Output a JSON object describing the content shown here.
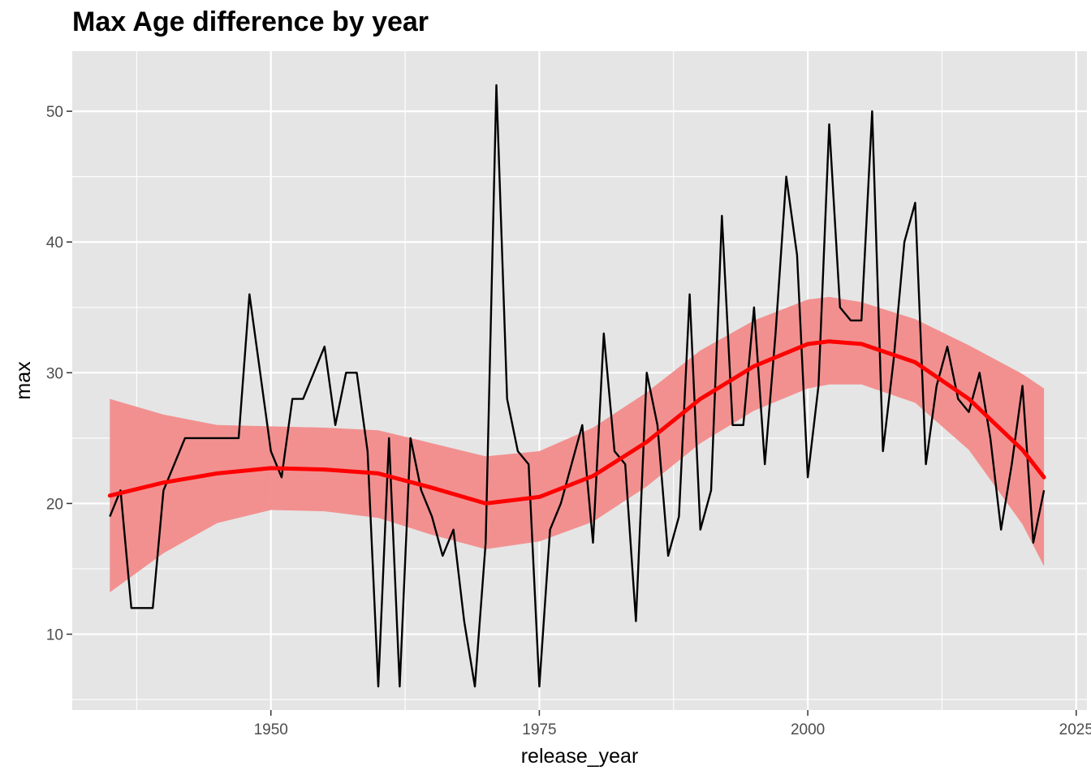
{
  "chart_data": {
    "type": "line",
    "title": "Max Age difference by year",
    "xlabel": "release_year",
    "ylabel": "max",
    "xlim": [
      1931.5,
      2026
    ],
    "ylim": [
      4.2,
      54.6
    ],
    "x_ticks": [
      1950,
      1975,
      2000,
      2025
    ],
    "y_ticks": [
      10,
      20,
      30,
      40,
      50
    ],
    "grid": true,
    "legend": "none",
    "colors": {
      "panel_background": "#e5e5e5",
      "grid": "#ffffff",
      "line": "#000000",
      "smooth_line": "#ff0000",
      "ribbon": "#f28b8b"
    },
    "series": [
      {
        "type": "line",
        "x": [
          1935,
          1936,
          1937,
          1938,
          1939,
          1940,
          1941,
          1942,
          1943,
          1944,
          1945,
          1946,
          1947,
          1948,
          1949,
          1950,
          1951,
          1952,
          1953,
          1954,
          1955,
          1956,
          1957,
          1958,
          1959,
          1960,
          1961,
          1962,
          1963,
          1964,
          1965,
          1966,
          1967,
          1968,
          1969,
          1970,
          1971,
          1972,
          1973,
          1974,
          1975,
          1976,
          1977,
          1978,
          1979,
          1980,
          1981,
          1982,
          1983,
          1984,
          1985,
          1986,
          1987,
          1988,
          1989,
          1990,
          1991,
          1992,
          1993,
          1994,
          1995,
          1996,
          1997,
          1998,
          1999,
          2000,
          2001,
          2002,
          2003,
          2004,
          2005,
          2006,
          2007,
          2008,
          2009,
          2010,
          2011,
          2012,
          2013,
          2014,
          2015,
          2016,
          2017,
          2018,
          2019,
          2020,
          2021,
          2022
        ],
        "values": [
          19,
          21,
          12,
          12,
          12,
          21,
          23,
          25,
          25,
          25,
          25,
          25,
          25,
          36,
          30,
          24,
          22,
          28,
          28,
          30,
          32,
          26,
          30,
          30,
          24,
          6,
          25,
          6,
          25,
          21,
          19,
          16,
          18,
          11,
          6,
          17,
          52,
          28,
          24,
          23,
          6,
          18,
          20,
          23,
          26,
          17,
          33,
          24,
          23,
          11,
          30,
          26,
          16,
          19,
          36,
          18,
          21,
          42,
          26,
          26,
          35,
          23,
          33,
          45,
          39,
          22,
          29,
          49,
          35,
          34,
          34,
          50,
          24,
          31,
          40,
          43,
          23,
          29,
          32,
          28,
          27,
          30,
          25,
          18,
          23,
          29,
          17,
          21
        ]
      },
      {
        "type": "smooth",
        "x": [
          1935,
          1940,
          1945,
          1950,
          1955,
          1960,
          1965,
          1970,
          1975,
          1980,
          1985,
          1990,
          1995,
          2000,
          2002,
          2005,
          2010,
          2015,
          2020,
          2022
        ],
        "values": [
          20.6,
          21.6,
          22.3,
          22.7,
          22.6,
          22.3,
          21.2,
          20.0,
          20.5,
          22.1,
          24.7,
          28.0,
          30.5,
          32.2,
          32.4,
          32.2,
          30.8,
          28.0,
          24.1,
          22.0
        ],
        "band_upper": [
          28.0,
          26.8,
          26.0,
          25.9,
          25.8,
          25.6,
          24.6,
          23.6,
          24.0,
          25.8,
          28.5,
          31.7,
          34.0,
          35.6,
          35.8,
          35.4,
          34.1,
          32.1,
          29.9,
          28.8
        ],
        "band_lower": [
          13.2,
          16.2,
          18.5,
          19.5,
          19.4,
          18.9,
          17.6,
          16.5,
          17.1,
          18.6,
          21.3,
          24.6,
          27.1,
          28.8,
          29.1,
          29.1,
          27.7,
          24.1,
          18.4,
          15.2
        ]
      }
    ]
  }
}
